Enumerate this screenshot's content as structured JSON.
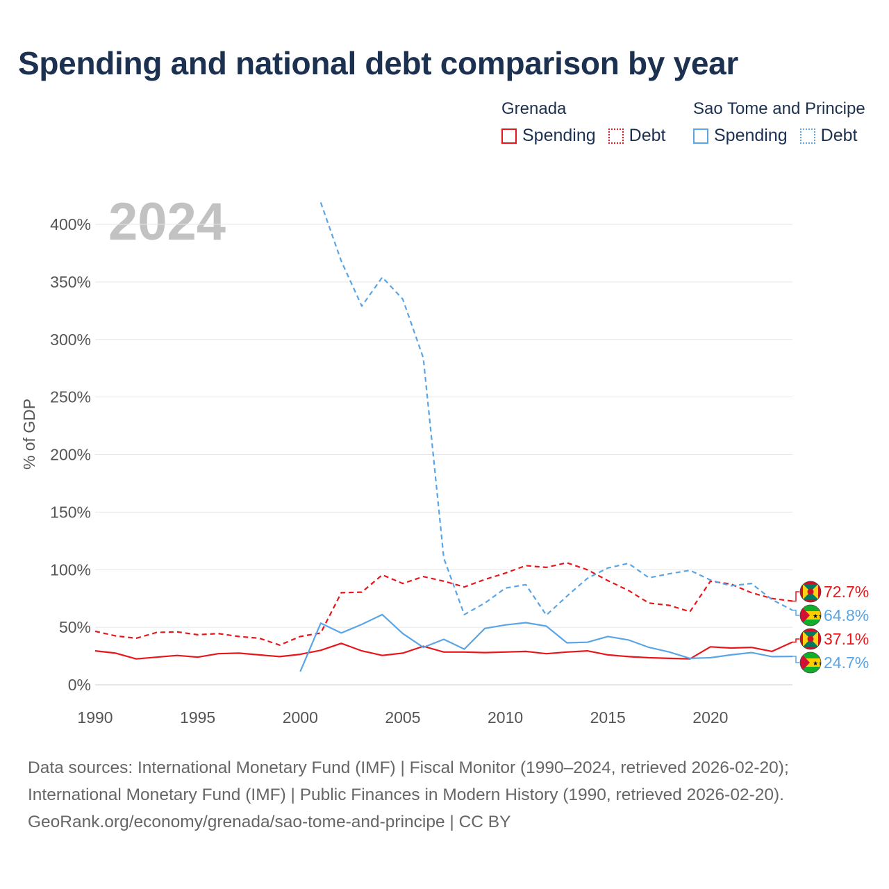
{
  "chart_data": {
    "type": "line",
    "title": "Spending and national debt comparison by year",
    "year_label": "2024",
    "ylabel": "% of GDP",
    "xlabel": "",
    "xlim": [
      1990,
      2024
    ],
    "ylim": [
      0,
      420
    ],
    "x_ticks": [
      "1990",
      "1995",
      "2000",
      "2005",
      "2010",
      "2015",
      "2020"
    ],
    "y_ticks": [
      "0%",
      "50%",
      "100%",
      "150%",
      "200%",
      "250%",
      "300%",
      "350%",
      "400%"
    ],
    "legend": {
      "groups": [
        {
          "country": "Grenada",
          "items": [
            {
              "label": "Spending",
              "style": "solid",
              "color": "#e8161b"
            },
            {
              "label": "Debt",
              "style": "dotted",
              "color": "#e8161b"
            }
          ]
        },
        {
          "country": "Sao Tome and Principe",
          "items": [
            {
              "label": "Spending",
              "style": "solid",
              "color": "#5aa5e6"
            },
            {
              "label": "Debt",
              "style": "dotted",
              "color": "#5aa5e6"
            }
          ]
        }
      ]
    },
    "series": [
      {
        "name": "Grenada Debt",
        "country": "Grenada",
        "metric": "Debt",
        "color": "#e8161b",
        "dashed": true,
        "end_label": "72.7%",
        "x": [
          1990,
          1991,
          1992,
          1993,
          1994,
          1995,
          1996,
          1997,
          1998,
          1999,
          2000,
          2001,
          2002,
          2003,
          2004,
          2005,
          2006,
          2007,
          2008,
          2009,
          2010,
          2011,
          2012,
          2013,
          2014,
          2015,
          2016,
          2017,
          2018,
          2019,
          2020,
          2021,
          2022,
          2023,
          2024
        ],
        "values": [
          46.5,
          42.5,
          40.5,
          45.5,
          46,
          43.5,
          44.5,
          42,
          40.5,
          34.5,
          42,
          45,
          80,
          80.5,
          95.5,
          88,
          94,
          90,
          85,
          91.5,
          97,
          103.5,
          102,
          106,
          100,
          90.5,
          82,
          71,
          69,
          63.5,
          90,
          87.5,
          80,
          75,
          72.7
        ]
      },
      {
        "name": "Sao Tome and Principe Debt",
        "country": "Sao Tome and Principe",
        "metric": "Debt",
        "color": "#5aa5e6",
        "dashed": true,
        "end_label": "64.8%",
        "x": [
          2001,
          2002,
          2003,
          2004,
          2005,
          2006,
          2007,
          2008,
          2009,
          2010,
          2011,
          2012,
          2013,
          2014,
          2015,
          2016,
          2017,
          2018,
          2019,
          2020,
          2021,
          2022,
          2023,
          2024
        ],
        "values": [
          419,
          368,
          329,
          354,
          335,
          284,
          110,
          61,
          71,
          84,
          87,
          60.5,
          77,
          92.5,
          101.5,
          105.5,
          93,
          96.5,
          99.5,
          91,
          86,
          88,
          74,
          64.8
        ]
      },
      {
        "name": "Grenada Spending",
        "country": "Grenada",
        "metric": "Spending",
        "color": "#e8161b",
        "dashed": false,
        "end_label": "37.1%",
        "x": [
          1990,
          1991,
          1992,
          1993,
          1994,
          1995,
          1996,
          1997,
          1998,
          1999,
          2000,
          2001,
          2002,
          2003,
          2004,
          2005,
          2006,
          2007,
          2008,
          2009,
          2010,
          2011,
          2012,
          2013,
          2014,
          2015,
          2016,
          2017,
          2018,
          2019,
          2020,
          2021,
          2022,
          2023,
          2024
        ],
        "values": [
          29.5,
          27.5,
          22.5,
          24,
          25.5,
          24,
          27,
          27.5,
          26,
          24.5,
          26.5,
          30,
          36,
          29.5,
          25.5,
          27.5,
          33.5,
          28.5,
          28.5,
          28,
          28.5,
          29,
          27,
          28.5,
          29.5,
          26,
          24.5,
          23.5,
          23,
          22.5,
          33,
          32,
          32.5,
          29,
          37.1
        ]
      },
      {
        "name": "Sao Tome and Principe Spending",
        "country": "Sao Tome and Principe",
        "metric": "Spending",
        "color": "#5aa5e6",
        "dashed": false,
        "end_label": "24.7%",
        "x": [
          2000,
          2001,
          2002,
          2003,
          2004,
          2005,
          2006,
          2007,
          2008,
          2009,
          2010,
          2011,
          2012,
          2013,
          2014,
          2015,
          2016,
          2017,
          2018,
          2019,
          2020,
          2021,
          2022,
          2023,
          2024
        ],
        "values": [
          11.5,
          53.5,
          45,
          52.5,
          61,
          44.5,
          32.5,
          39.5,
          31,
          49,
          52,
          54,
          51,
          36.5,
          37,
          42,
          39,
          32.5,
          28.5,
          23,
          23.5,
          26,
          28,
          24.5,
          24.7
        ]
      }
    ]
  },
  "source": {
    "line1": "Data sources: International Monetary Fund (IMF) | Fiscal Monitor (1990–2024, retrieved 2026-02-20);",
    "line2": "International Monetary Fund (IMF) | Public Finances in Modern History (1990, retrieved 2026-02-20).",
    "line3": "GeoRank.org/economy/grenada/sao-tome-and-principe | CC BY"
  },
  "colors": {
    "grenada": "#e8161b",
    "sao_tome": "#5aa5e6",
    "title": "#1c3150",
    "grid": "#e6e6e6"
  }
}
